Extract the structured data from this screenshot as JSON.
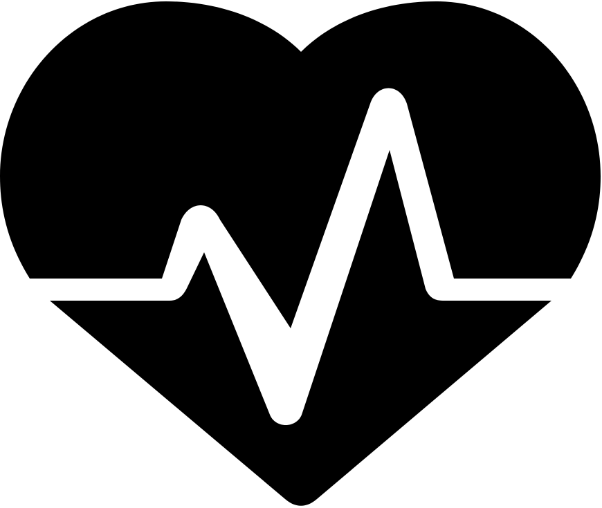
{
  "icon": {
    "name": "heart-pulse-icon",
    "colors": {
      "background": "#ffffff",
      "heart": "#000000",
      "pulse": "#ffffff"
    }
  }
}
